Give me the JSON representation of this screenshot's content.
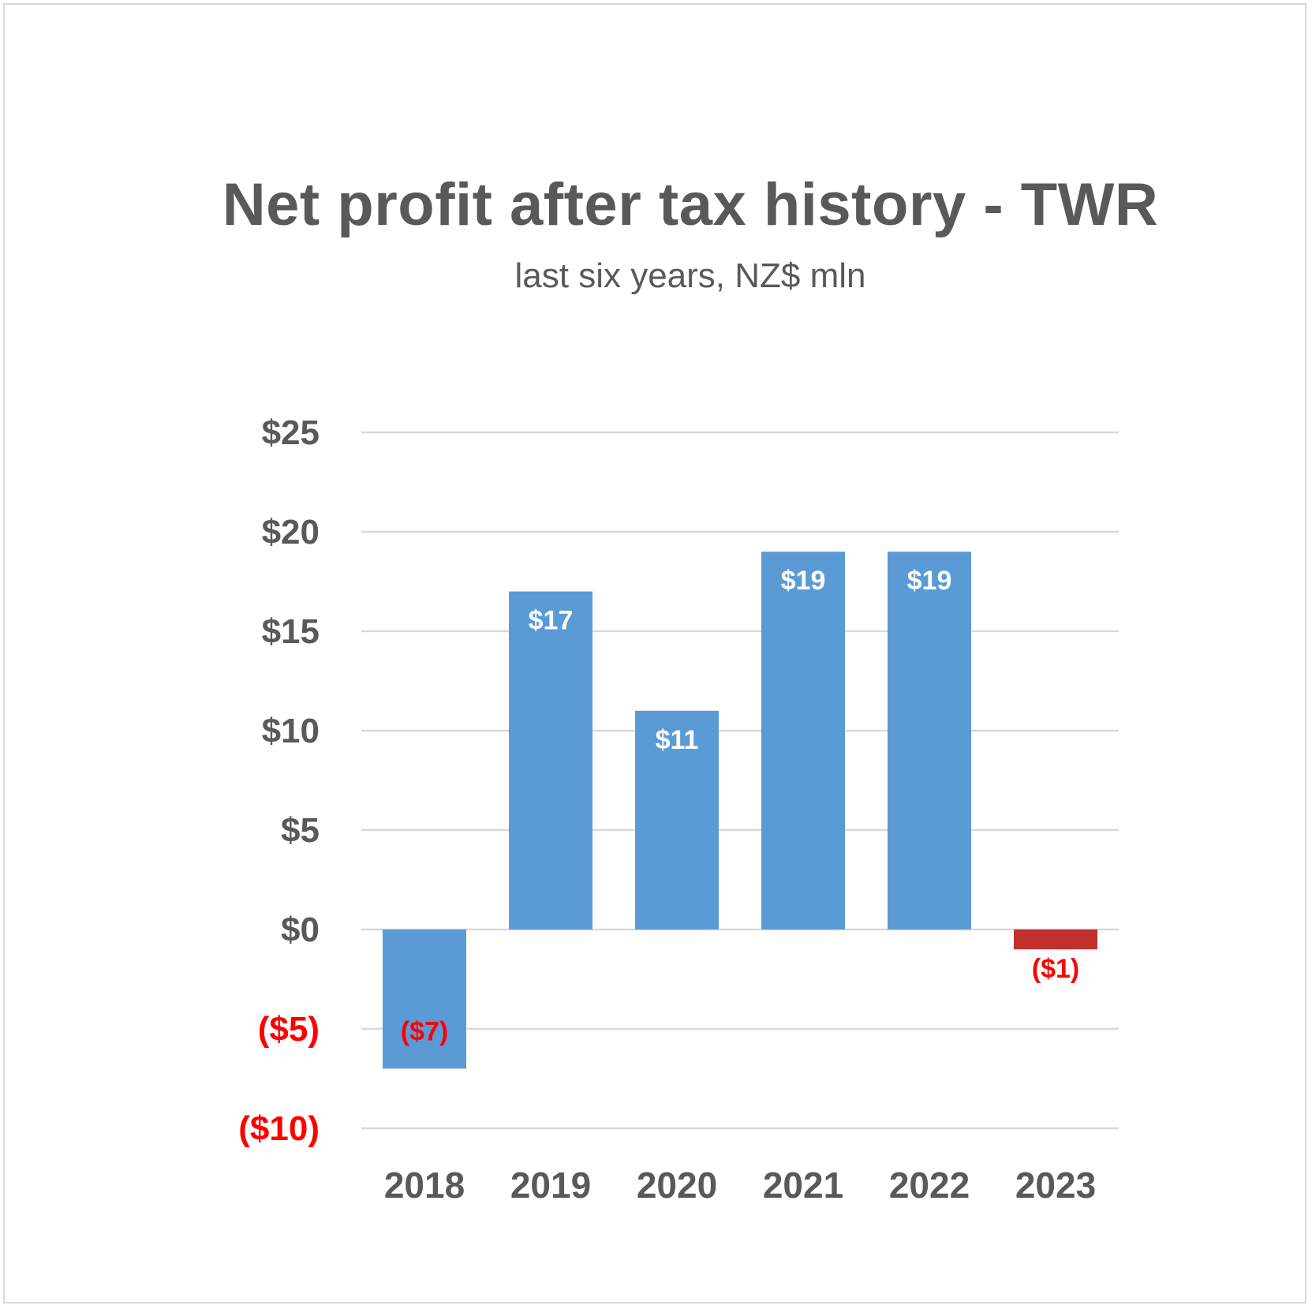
{
  "chart_data": {
    "type": "bar",
    "title": "Net profit after tax history - TWR",
    "subtitle": "last six years, NZ$ mln",
    "categories": [
      "2018",
      "2019",
      "2020",
      "2021",
      "2022",
      "2023"
    ],
    "values": [
      -7,
      17,
      11,
      19,
      19,
      -1
    ],
    "data_labels": [
      "($7)",
      "$17",
      "$11",
      "$19",
      "$19",
      "($1)"
    ],
    "ylim": [
      -10,
      25
    ],
    "yticks": [
      25,
      20,
      15,
      10,
      5,
      0,
      -5,
      -10
    ],
    "ytick_labels": [
      "$25",
      "$20",
      "$15",
      "$10",
      "$5",
      "$0",
      "($5)",
      "($10)"
    ],
    "grid": true,
    "colors": {
      "bar": "#5b9bd5",
      "bar_2023": "#c0302c",
      "positive_text": "#595959",
      "negative_text": "#ff0000",
      "label_in_bar": "#ffffff",
      "label_negative": "#ff0000",
      "grid": "#d9d9d9"
    }
  }
}
